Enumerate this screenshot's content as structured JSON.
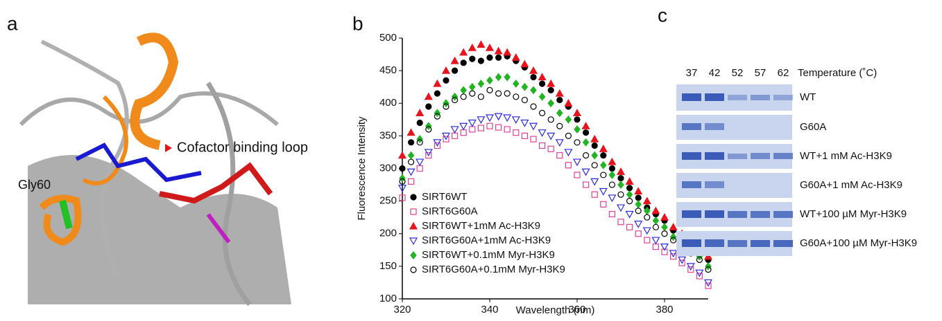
{
  "panel_labels": [
    "a",
    "b",
    "c"
  ],
  "panel_a": {
    "labels": [
      "Gly60",
      "Cofactor binding loop"
    ]
  },
  "chart_data": {
    "type": "scatter",
    "xlabel": "Wavelength (nm)",
    "ylabel": "Fluorescence Intensity",
    "xlim": [
      320,
      390
    ],
    "ylim": [
      100,
      500
    ],
    "xticks": [
      320,
      340,
      360,
      380
    ],
    "yticks": [
      100,
      150,
      200,
      250,
      300,
      350,
      400,
      450,
      500
    ],
    "legend": "lower left",
    "x": [
      320,
      322,
      324,
      326,
      328,
      330,
      332,
      334,
      336,
      338,
      340,
      342,
      344,
      346,
      348,
      350,
      352,
      354,
      356,
      358,
      360,
      362,
      364,
      366,
      368,
      370,
      372,
      374,
      376,
      378,
      380,
      382,
      384,
      386,
      388,
      390
    ],
    "series": [
      {
        "name": "SIRT6WT",
        "color": "#000000",
        "marker": "circle",
        "filled": true,
        "values": [
          300,
          340,
          370,
          395,
          415,
          435,
          450,
          462,
          468,
          465,
          470,
          470,
          472,
          465,
          455,
          440,
          430,
          420,
          405,
          395,
          375,
          355,
          335,
          320,
          300,
          285,
          270,
          255,
          240,
          230,
          220,
          205,
          195,
          185,
          175,
          160
        ]
      },
      {
        "name": "SIRT6G60A",
        "color": "#e0409a",
        "marker": "square",
        "filled": false,
        "values": [
          255,
          280,
          300,
          320,
          335,
          345,
          350,
          355,
          360,
          362,
          365,
          363,
          360,
          355,
          350,
          345,
          335,
          330,
          320,
          305,
          290,
          275,
          260,
          245,
          230,
          218,
          210,
          200,
          190,
          180,
          172,
          165,
          155,
          145,
          135,
          120
        ]
      },
      {
        "name": "SIRT6WT+1mM Ac-H3K9",
        "color": "#e8141c",
        "marker": "triangle-up",
        "filled": true,
        "values": [
          320,
          355,
          385,
          410,
          430,
          450,
          465,
          478,
          485,
          490,
          485,
          480,
          478,
          470,
          460,
          450,
          440,
          430,
          415,
          400,
          385,
          365,
          345,
          330,
          310,
          295,
          280,
          265,
          250,
          235,
          225,
          210,
          200,
          190,
          180,
          165
        ]
      },
      {
        "name": "SIRT6G60A+1mM Ac-H3K9",
        "color": "#2a2ae0",
        "marker": "triangle-down",
        "filled": false,
        "values": [
          270,
          295,
          310,
          325,
          340,
          350,
          360,
          365,
          370,
          375,
          378,
          380,
          378,
          375,
          370,
          365,
          355,
          350,
          340,
          325,
          310,
          295,
          280,
          265,
          255,
          240,
          230,
          215,
          205,
          190,
          180,
          170,
          160,
          150,
          140,
          125
        ]
      },
      {
        "name": "SIRT6WT+0.1mM Myr-H3K9",
        "color": "#22b422",
        "marker": "diamond",
        "filled": true,
        "values": [
          285,
          320,
          345,
          365,
          385,
          400,
          410,
          420,
          425,
          430,
          435,
          440,
          440,
          430,
          425,
          420,
          410,
          400,
          385,
          375,
          360,
          340,
          320,
          305,
          290,
          275,
          260,
          245,
          235,
          220,
          210,
          195,
          185,
          175,
          165,
          150
        ]
      },
      {
        "name": "SIRT6G60A+0.1mM Myr-H3K9",
        "color": "#000000",
        "marker": "circle",
        "filled": false,
        "values": [
          280,
          310,
          340,
          360,
          380,
          395,
          405,
          410,
          415,
          410,
          420,
          415,
          415,
          410,
          405,
          395,
          385,
          375,
          365,
          350,
          340,
          320,
          305,
          290,
          275,
          260,
          250,
          235,
          225,
          210,
          200,
          190,
          180,
          170,
          160,
          145
        ]
      }
    ]
  },
  "panel_c": {
    "lanes": [
      "37",
      "42",
      "52",
      "57",
      "62"
    ],
    "header": "Temperature (˚C)",
    "rows": [
      "WT",
      "G60A",
      "WT+1 mM Ac-H3K9",
      "G60A+1 mM Ac-H3K9",
      "WT+100 µM Myr-H3K9",
      "G60A+100 µM Myr-H3K9"
    ]
  }
}
